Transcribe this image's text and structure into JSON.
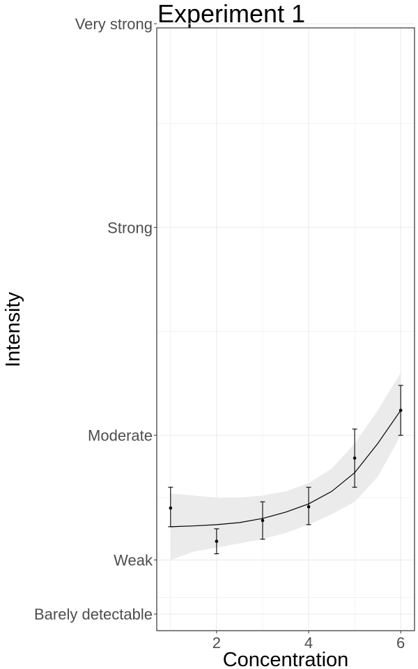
{
  "chart_data": {
    "type": "line",
    "title": "Experiment 1",
    "xlabel": "Concentration",
    "ylabel": "Intensity",
    "xlim": [
      0.7,
      6.3
    ],
    "ylim": [
      0,
      1.45
    ],
    "x_ticks": [
      2,
      4,
      6
    ],
    "y_ticks": [
      {
        "value": 0.04,
        "label": "Barely detectable"
      },
      {
        "value": 0.17,
        "label": "Weak"
      },
      {
        "value": 0.47,
        "label": "Moderate"
      },
      {
        "value": 0.97,
        "label": "Strong"
      },
      {
        "value": 1.46,
        "label": "Very strong"
      }
    ],
    "y_minor_grid": [
      0.08,
      0.32,
      0.72,
      1.22
    ],
    "points": [
      {
        "x": 1,
        "y": 0.295,
        "err_low": 0.25,
        "err_high": 0.345
      },
      {
        "x": 2,
        "y": 0.215,
        "err_low": 0.185,
        "err_high": 0.245
      },
      {
        "x": 3,
        "y": 0.265,
        "err_low": 0.22,
        "err_high": 0.31
      },
      {
        "x": 4,
        "y": 0.298,
        "err_low": 0.255,
        "err_high": 0.345
      },
      {
        "x": 5,
        "y": 0.415,
        "err_low": 0.345,
        "err_high": 0.485
      },
      {
        "x": 6,
        "y": 0.53,
        "err_low": 0.47,
        "err_high": 0.59
      }
    ],
    "fit_line": {
      "x": [
        1,
        1.5,
        2,
        2.5,
        3,
        3.5,
        4,
        4.5,
        5,
        5.5,
        6
      ],
      "y": [
        0.25,
        0.252,
        0.255,
        0.26,
        0.27,
        0.285,
        0.305,
        0.335,
        0.38,
        0.45,
        0.53
      ],
      "ci_low": [
        0.17,
        0.19,
        0.2,
        0.21,
        0.22,
        0.235,
        0.255,
        0.28,
        0.31,
        0.37,
        0.47
      ],
      "ci_high": [
        0.33,
        0.325,
        0.32,
        0.32,
        0.325,
        0.335,
        0.355,
        0.39,
        0.45,
        0.53,
        0.62
      ]
    },
    "colors": {
      "ribbon": "#ebebeb",
      "line": "#000000",
      "grid": "#ebebeb",
      "panel_border": "#333333"
    }
  }
}
